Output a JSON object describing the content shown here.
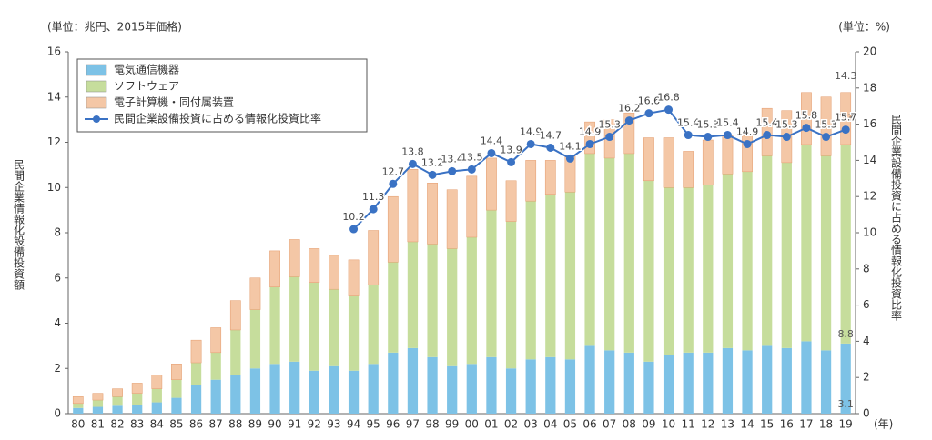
{
  "chart_data": {
    "type": "bar",
    "stacked": true,
    "y_unit_label": "(単位：兆円、2015年価格)",
    "y2_unit_label": "(単位：%)",
    "ylabel": "民間企業情報化設備投資額",
    "y2label": "民間企業設備投資に占める情報化投資比率",
    "x_unit_label": "(年)",
    "categories": [
      "80",
      "81",
      "82",
      "83",
      "84",
      "85",
      "86",
      "87",
      "88",
      "89",
      "90",
      "91",
      "92",
      "93",
      "94",
      "95",
      "96",
      "97",
      "98",
      "99",
      "00",
      "01",
      "02",
      "03",
      "04",
      "05",
      "06",
      "07",
      "08",
      "09",
      "10",
      "11",
      "12",
      "13",
      "14",
      "15",
      "16",
      "17",
      "18",
      "19"
    ],
    "series": [
      {
        "name": "電気通信機器",
        "color": "#7dc2e6",
        "values": [
          0.25,
          0.3,
          0.35,
          0.4,
          0.5,
          0.7,
          1.25,
          1.5,
          1.7,
          2.0,
          2.2,
          2.3,
          1.9,
          2.1,
          1.9,
          2.2,
          2.7,
          2.9,
          2.5,
          2.1,
          2.2,
          2.5,
          2.0,
          2.4,
          2.5,
          2.4,
          3.0,
          2.8,
          2.7,
          2.3,
          2.6,
          2.7,
          2.7,
          2.9,
          2.8,
          3.0,
          2.9,
          3.2,
          2.8,
          3.1
        ],
        "value_labels": [
          null,
          null,
          null,
          null,
          null,
          null,
          null,
          null,
          null,
          null,
          null,
          null,
          null,
          null,
          null,
          null,
          null,
          null,
          null,
          null,
          null,
          null,
          null,
          null,
          null,
          null,
          null,
          null,
          null,
          null,
          null,
          null,
          null,
          null,
          null,
          null,
          null,
          null,
          null,
          "3.1"
        ]
      },
      {
        "name": "ソフトウェア",
        "color": "#c6dd9c",
        "values": [
          0.2,
          0.3,
          0.4,
          0.5,
          0.6,
          0.8,
          1.0,
          1.2,
          2.0,
          2.6,
          3.4,
          3.75,
          3.9,
          3.4,
          3.3,
          3.5,
          4.0,
          4.7,
          5.0,
          5.2,
          5.6,
          6.5,
          6.5,
          7.0,
          7.2,
          7.4,
          8.5,
          8.5,
          8.8,
          8.0,
          7.4,
          7.3,
          7.4,
          7.7,
          7.9,
          8.4,
          8.2,
          8.7,
          8.6,
          8.8
        ],
        "value_labels": [
          null,
          null,
          null,
          null,
          null,
          null,
          null,
          null,
          null,
          null,
          null,
          null,
          null,
          null,
          null,
          null,
          null,
          null,
          null,
          null,
          null,
          null,
          null,
          null,
          null,
          null,
          null,
          null,
          null,
          null,
          null,
          null,
          null,
          null,
          null,
          null,
          null,
          null,
          null,
          "8.8"
        ]
      },
      {
        "name": "電子計算機・同付属装置",
        "color": "#f4c7a6",
        "values": [
          0.3,
          0.3,
          0.35,
          0.45,
          0.6,
          0.7,
          1.0,
          1.1,
          1.3,
          1.4,
          1.6,
          1.65,
          1.5,
          1.5,
          1.6,
          2.4,
          2.9,
          3.2,
          2.7,
          2.6,
          2.7,
          2.3,
          1.8,
          1.8,
          1.5,
          1.6,
          1.4,
          1.7,
          1.8,
          1.9,
          2.2,
          1.6,
          2.0,
          1.7,
          1.6,
          2.1,
          2.3,
          2.3,
          2.6,
          2.3
        ],
        "value_labels": [
          null,
          null,
          null,
          null,
          null,
          null,
          null,
          null,
          null,
          null,
          null,
          null,
          null,
          null,
          null,
          null,
          null,
          null,
          null,
          null,
          null,
          null,
          null,
          null,
          null,
          null,
          null,
          null,
          null,
          null,
          null,
          null,
          null,
          null,
          null,
          null,
          null,
          null,
          null,
          "2.3"
        ]
      },
      {
        "name": "民間企業設備投資に占める情報化投資比率",
        "color": "#3a72c4",
        "type": "line",
        "axis": "y2",
        "values": [
          null,
          null,
          null,
          null,
          null,
          null,
          null,
          null,
          null,
          null,
          null,
          null,
          null,
          null,
          10.2,
          11.3,
          12.7,
          13.8,
          13.2,
          13.4,
          13.5,
          14.4,
          13.9,
          14.9,
          14.7,
          14.1,
          14.9,
          15.3,
          16.2,
          16.6,
          16.8,
          15.4,
          15.3,
          15.4,
          14.9,
          15.4,
          15.3,
          15.8,
          15.3,
          15.7
        ]
      }
    ],
    "total_label": "14.3",
    "ylim": [
      0,
      16
    ],
    "yticks": [
      0,
      2,
      4,
      6,
      8,
      10,
      12,
      14,
      16
    ],
    "y2lim": [
      0,
      20
    ],
    "y2ticks": [
      0,
      2,
      4,
      6,
      8,
      10,
      12,
      14,
      16,
      18,
      20
    ],
    "grid": false,
    "legend": "upper left"
  }
}
